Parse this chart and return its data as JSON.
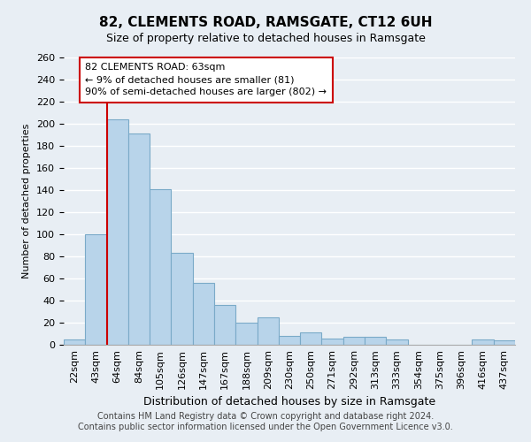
{
  "title": "82, CLEMENTS ROAD, RAMSGATE, CT12 6UH",
  "subtitle": "Size of property relative to detached houses in Ramsgate",
  "xlabel": "Distribution of detached houses by size in Ramsgate",
  "ylabel": "Number of detached properties",
  "bin_labels": [
    "22sqm",
    "43sqm",
    "64sqm",
    "84sqm",
    "105sqm",
    "126sqm",
    "147sqm",
    "167sqm",
    "188sqm",
    "209sqm",
    "230sqm",
    "250sqm",
    "271sqm",
    "292sqm",
    "313sqm",
    "333sqm",
    "354sqm",
    "375sqm",
    "396sqm",
    "416sqm",
    "437sqm"
  ],
  "bar_values": [
    5,
    100,
    204,
    191,
    141,
    83,
    56,
    36,
    20,
    25,
    8,
    11,
    6,
    7,
    7,
    5,
    0,
    0,
    0,
    5,
    4
  ],
  "bar_color": "#b8d4ea",
  "bar_edge_color": "#7aaac8",
  "property_line_color": "#cc0000",
  "annotation_title": "82 CLEMENTS ROAD: 63sqm",
  "annotation_line1": "← 9% of detached houses are smaller (81)",
  "annotation_line2": "90% of semi-detached houses are larger (802) →",
  "annotation_box_color": "#ffffff",
  "annotation_box_edge": "#cc0000",
  "ylim": [
    0,
    260
  ],
  "yticks": [
    0,
    20,
    40,
    60,
    80,
    100,
    120,
    140,
    160,
    180,
    200,
    220,
    240,
    260
  ],
  "footer_line1": "Contains HM Land Registry data © Crown copyright and database right 2024.",
  "footer_line2": "Contains public sector information licensed under the Open Government Licence v3.0.",
  "bg_color": "#e8eef4",
  "plot_bg_color": "#e8eef4",
  "grid_color": "#ffffff",
  "title_fontsize": 11,
  "subtitle_fontsize": 9,
  "ylabel_fontsize": 8,
  "xlabel_fontsize": 9,
  "tick_fontsize": 8,
  "annotation_fontsize": 8,
  "footer_fontsize": 7
}
